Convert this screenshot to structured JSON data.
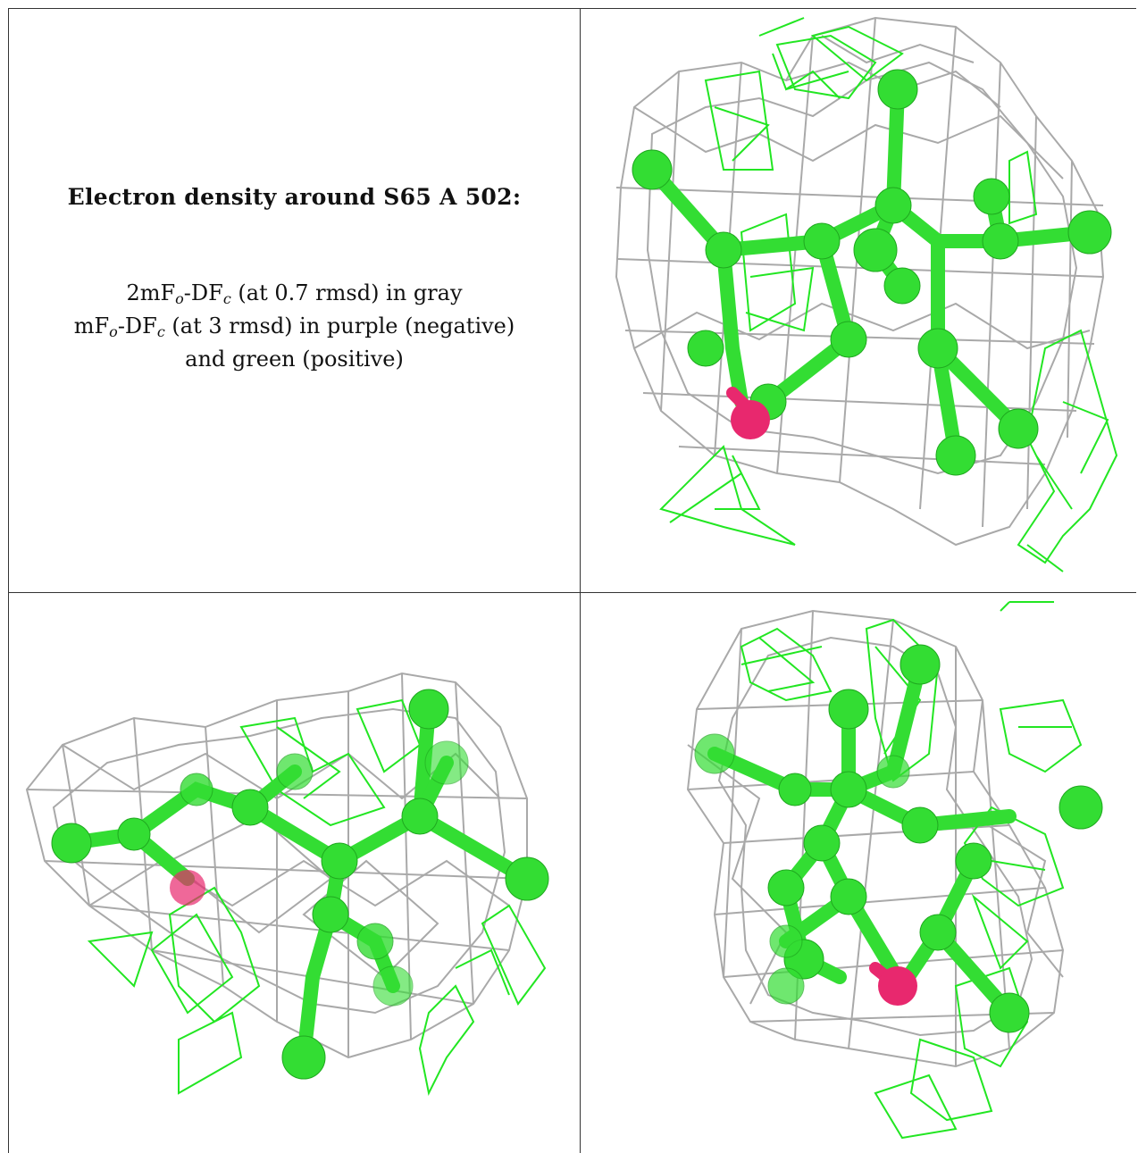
{
  "title": "Electron density around S65 A 502:",
  "legend": {
    "line1": {
      "a": "2mF",
      "a_sub": "o",
      "b": "-DF",
      "b_sub": "c",
      "rest": " (at 0.7 rmsd) in gray"
    },
    "line2": {
      "a": "mF",
      "a_sub": "o",
      "b": "-DF",
      "b_sub": "c",
      "rest": " (at 3 rmsd) in purple (negative)"
    },
    "line3": "and green (positive)"
  },
  "colors": {
    "gray_mesh": "#a9a9a9",
    "green_mesh": "#22e622",
    "atom_green": "#33dd33",
    "oxygen": "#e8286e"
  }
}
